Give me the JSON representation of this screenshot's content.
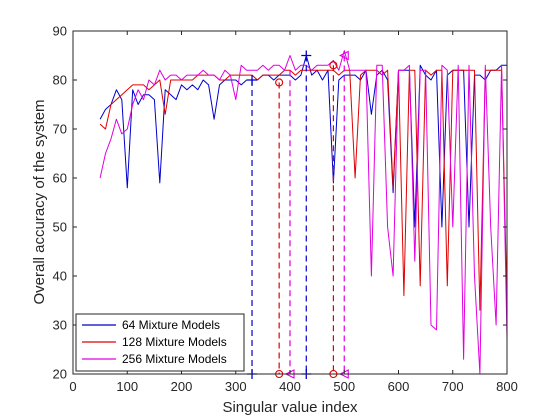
{
  "chart_data": {
    "type": "line",
    "title": "",
    "xlabel": "Singular value index",
    "ylabel": "Overall accuracy of the system",
    "xlim": [
      0,
      800
    ],
    "ylim": [
      20,
      90
    ],
    "xticks": [
      0,
      100,
      200,
      300,
      400,
      500,
      600,
      700,
      800
    ],
    "yticks": [
      20,
      30,
      40,
      50,
      60,
      70,
      80,
      90
    ],
    "grid": false,
    "legend_position": "bottom-left",
    "series": [
      {
        "name": "64 Mixture Models",
        "color": "#0000cc",
        "x": [
          50,
          60,
          70,
          80,
          90,
          100,
          110,
          120,
          130,
          140,
          150,
          160,
          170,
          180,
          190,
          200,
          210,
          220,
          230,
          240,
          250,
          260,
          270,
          280,
          290,
          300,
          310,
          320,
          330,
          340,
          350,
          360,
          370,
          380,
          390,
          400,
          410,
          420,
          430,
          440,
          450,
          460,
          470,
          480,
          490,
          500,
          510,
          520,
          530,
          540,
          550,
          560,
          570,
          580,
          590,
          600,
          610,
          620,
          630,
          640,
          650,
          660,
          670,
          680,
          690,
          700,
          710,
          720,
          730,
          740,
          750,
          760,
          770,
          780,
          790,
          800
        ],
        "y": [
          72,
          74,
          75,
          78,
          76,
          58,
          78,
          75,
          77,
          77,
          76,
          59,
          78,
          77,
          76,
          79,
          78,
          79,
          78,
          80,
          79,
          72,
          79,
          80,
          80,
          80,
          79,
          80,
          80,
          80,
          81,
          81,
          80,
          81,
          81,
          81,
          80,
          81,
          85,
          81,
          82,
          80,
          82,
          59,
          80,
          81,
          81,
          81,
          80,
          82,
          73,
          81,
          82,
          80,
          57,
          82,
          82,
          82,
          50,
          83,
          81,
          80,
          82,
          50,
          81,
          82,
          82,
          82,
          50,
          81,
          81,
          80,
          82,
          82,
          83,
          83
        ]
      },
      {
        "name": "128 Mixture Models",
        "color": "#e00000",
        "x": [
          50,
          60,
          70,
          80,
          90,
          100,
          110,
          120,
          130,
          140,
          150,
          160,
          170,
          180,
          190,
          200,
          210,
          220,
          230,
          240,
          250,
          260,
          270,
          280,
          290,
          300,
          310,
          320,
          330,
          340,
          350,
          360,
          370,
          380,
          390,
          400,
          410,
          420,
          430,
          440,
          450,
          460,
          470,
          480,
          490,
          500,
          510,
          520,
          530,
          540,
          550,
          560,
          570,
          580,
          590,
          600,
          610,
          620,
          630,
          640,
          650,
          660,
          670,
          680,
          690,
          700,
          710,
          720,
          730,
          740,
          750,
          760,
          770,
          780,
          790,
          800
        ],
        "y": [
          71,
          70,
          75,
          76,
          77,
          78,
          79,
          79,
          79,
          78,
          79,
          80,
          73,
          80,
          80,
          80,
          80,
          80,
          81,
          81,
          81,
          81,
          80,
          80,
          81,
          81,
          81,
          81,
          81,
          80,
          81,
          81,
          81,
          81,
          82,
          82,
          81,
          82,
          82,
          82,
          82,
          82,
          82,
          82,
          81,
          82,
          82,
          60,
          81,
          82,
          82,
          82,
          81,
          82,
          58,
          82,
          36,
          82,
          82,
          38,
          82,
          81,
          82,
          82,
          38,
          82,
          82,
          82,
          82,
          82,
          33,
          82,
          82,
          82,
          82,
          34
        ]
      },
      {
        "name": "256 Mixture Models",
        "color": "#e000e0",
        "x": [
          50,
          60,
          70,
          80,
          90,
          100,
          110,
          120,
          130,
          140,
          150,
          160,
          170,
          180,
          190,
          200,
          210,
          220,
          230,
          240,
          250,
          260,
          270,
          280,
          290,
          300,
          310,
          320,
          330,
          340,
          350,
          360,
          370,
          380,
          390,
          400,
          410,
          420,
          430,
          440,
          450,
          460,
          470,
          480,
          490,
          500,
          510,
          520,
          530,
          540,
          550,
          560,
          570,
          580,
          590,
          600,
          610,
          620,
          630,
          640,
          650,
          660,
          670,
          680,
          690,
          700,
          710,
          720,
          730,
          740,
          750,
          760,
          770,
          780,
          790,
          800
        ],
        "y": [
          60,
          65,
          68,
          72,
          69,
          70,
          75,
          78,
          76,
          80,
          79,
          82,
          80,
          81,
          81,
          80,
          81,
          81,
          81,
          82,
          81,
          81,
          80,
          82,
          81,
          76,
          83,
          82,
          82,
          82,
          83,
          82,
          83,
          83,
          82,
          85,
          82,
          83,
          83,
          82,
          83,
          83,
          83,
          84,
          82,
          86,
          82,
          82,
          82,
          82,
          40,
          83,
          83,
          50,
          40,
          82,
          82,
          83,
          43,
          82,
          82,
          30,
          29,
          83,
          82,
          50,
          83,
          23,
          83,
          40,
          20,
          83,
          50,
          30,
          83,
          27
        ]
      }
    ],
    "markers": [
      {
        "x": 330,
        "y": 80,
        "symbol": "+",
        "color": "#0000cc"
      },
      {
        "x": 430,
        "y": 85,
        "symbol": "+",
        "color": "#0000cc"
      },
      {
        "x": 330,
        "y": 20,
        "symbol": "+",
        "color": "#0000cc"
      },
      {
        "x": 430,
        "y": 20,
        "symbol": "+",
        "color": "#0000cc"
      },
      {
        "x": 380,
        "y": 79.5,
        "symbol": "o",
        "color": "#e00000"
      },
      {
        "x": 480,
        "y": 83,
        "symbol": "o",
        "color": "#e00000"
      },
      {
        "x": 380,
        "y": 20,
        "symbol": "o",
        "color": "#e00000"
      },
      {
        "x": 480,
        "y": 20,
        "symbol": "o",
        "color": "#e00000"
      },
      {
        "x": 400,
        "y": 20,
        "symbol": "<",
        "color": "#e000e0"
      },
      {
        "x": 500,
        "y": 85,
        "symbol": "<",
        "color": "#e000e0"
      },
      {
        "x": 500,
        "y": 20,
        "symbol": "<",
        "color": "#e000e0"
      }
    ],
    "dashed_lines": [
      {
        "x": 330,
        "y_top": 80,
        "color": "#0000cc"
      },
      {
        "x": 430,
        "y_top": 85,
        "color": "#0000cc"
      },
      {
        "x": 380,
        "y_top": 79.5,
        "color": "#e00000"
      },
      {
        "x": 480,
        "y_top": 83,
        "color": "#e00000"
      },
      {
        "x": 400,
        "y_top": 82,
        "color": "#e000e0"
      },
      {
        "x": 500,
        "y_top": 85,
        "color": "#e000e0"
      }
    ]
  }
}
